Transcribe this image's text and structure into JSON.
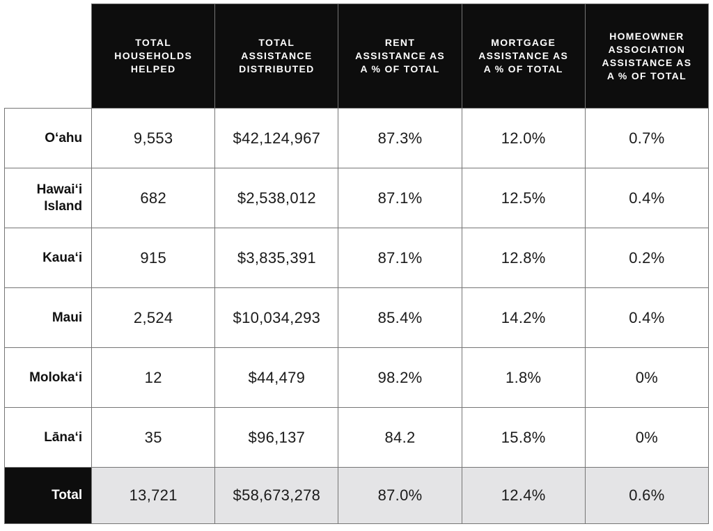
{
  "chart_data": {
    "type": "table",
    "corner_label": "",
    "columns": [
      "TOTAL\nHOUSEHOLDS\nHELPED",
      "TOTAL\nASSISTANCE\nDISTRIBUTED",
      "RENT\nASSISTANCE AS\nA % OF TOTAL",
      "MORTGAGE\nASSISTANCE AS\nA % OF TOTAL",
      "HOMEOWNER\nASSOCIATION\nASSISTANCE AS\nA % OF TOTAL"
    ],
    "rows": [
      {
        "label": "Oʻahu",
        "values": [
          "9,553",
          "$42,124,967",
          "87.3%",
          "12.0%",
          "0.7%"
        ]
      },
      {
        "label": "Hawaiʻi\nIsland",
        "values": [
          "682",
          "$2,538,012",
          "87.1%",
          "12.5%",
          "0.4%"
        ]
      },
      {
        "label": "Kauaʻi",
        "values": [
          "915",
          "$3,835,391",
          "87.1%",
          "12.8%",
          "0.2%"
        ]
      },
      {
        "label": "Maui",
        "values": [
          "2,524",
          "$10,034,293",
          "85.4%",
          "14.2%",
          "0.4%"
        ]
      },
      {
        "label": "Molokaʻi",
        "values": [
          "12",
          "$44,479",
          "98.2%",
          "1.8%",
          "0%"
        ]
      },
      {
        "label": "Lānaʻi",
        "values": [
          "35",
          "$96,137",
          "84.2",
          "15.8%",
          "0%"
        ]
      }
    ],
    "total_row": {
      "label": "Total",
      "values": [
        "13,721",
        "$58,673,278",
        "87.0%",
        "12.4%",
        "0.6%"
      ]
    },
    "layout": {
      "grid": "on",
      "header_position": "top",
      "total_row_position": "bottom"
    }
  },
  "colors": {
    "header_bg": "#0d0d0d",
    "header_text": "#ffffff",
    "body_text": "#1a1a1a",
    "grid_border": "#757575",
    "total_row_bg": "#e4e4e6",
    "page_bg": "#ffffff"
  }
}
